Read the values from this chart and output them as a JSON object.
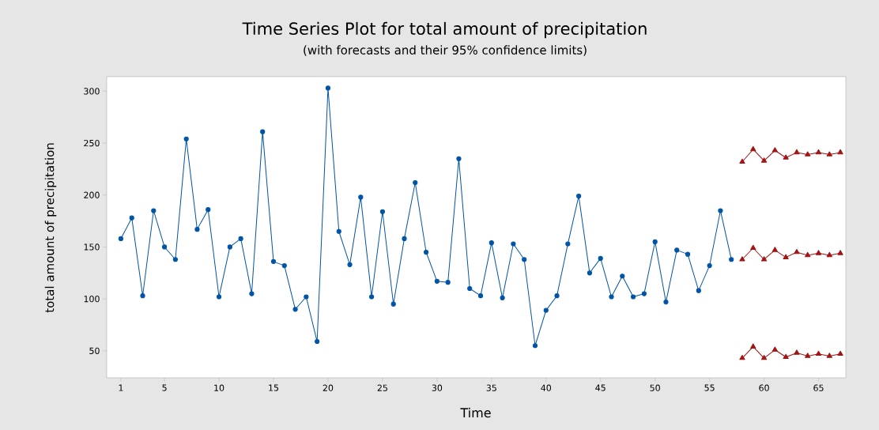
{
  "chart_data": {
    "type": "line",
    "title": "Time Series Plot for total amount of precipitation",
    "subtitle": "(with forecasts and their 95% confidence limits)",
    "xlabel": "Time",
    "ylabel": "total amount of precipitation",
    "xlim": [
      -0.3,
      67.5
    ],
    "ylim": [
      24,
      314
    ],
    "xticks": [
      1,
      5,
      10,
      15,
      20,
      25,
      30,
      35,
      40,
      45,
      50,
      55,
      60,
      65
    ],
    "yticks": [
      50,
      100,
      150,
      200,
      250,
      300
    ],
    "line_style": "solid",
    "series": [
      {
        "color": "#0054a6",
        "marker": "circle",
        "x": [
          1,
          2,
          3,
          4,
          5,
          6,
          7,
          8,
          9,
          10,
          11,
          12,
          13,
          14,
          15,
          16,
          17,
          18,
          19,
          20,
          21,
          22,
          23,
          24,
          25,
          26,
          27,
          28,
          29,
          30,
          31,
          32,
          33,
          34,
          35,
          36,
          37,
          38,
          39,
          40,
          41,
          42,
          43,
          44,
          45,
          46,
          47,
          48,
          49,
          50,
          51,
          52,
          53,
          54,
          55,
          56,
          57
        ],
        "values": [
          158,
          178,
          103,
          185,
          150,
          138,
          254,
          167,
          186,
          102,
          150,
          158,
          105,
          261,
          136,
          132,
          90,
          102,
          59,
          303,
          165,
          133,
          198,
          102,
          184,
          95,
          158,
          212,
          145,
          117,
          116,
          235,
          110,
          103,
          154,
          101,
          153,
          138,
          55,
          89,
          103,
          153,
          199,
          125,
          139,
          102,
          122,
          102,
          105,
          155,
          97,
          147,
          143,
          108,
          132,
          185,
          138
        ]
      },
      {
        "color": "#a01414",
        "marker": "triangle",
        "x": [
          58,
          59,
          60,
          61,
          62,
          63,
          64,
          65,
          66,
          67
        ],
        "values": [
          138,
          149,
          138,
          147,
          140,
          145,
          142,
          144,
          142,
          144
        ]
      },
      {
        "color": "#a01414",
        "marker": "triangle",
        "x": [
          58,
          59,
          60,
          61,
          62,
          63,
          64,
          65,
          66,
          67
        ],
        "values": [
          232,
          244,
          233,
          243,
          236,
          241,
          239,
          241,
          239,
          241
        ]
      },
      {
        "color": "#a01414",
        "marker": "triangle",
        "x": [
          58,
          59,
          60,
          61,
          62,
          63,
          64,
          65,
          66,
          67
        ],
        "values": [
          43,
          54,
          43,
          51,
          44,
          48,
          45,
          47,
          45,
          47
        ]
      }
    ]
  }
}
